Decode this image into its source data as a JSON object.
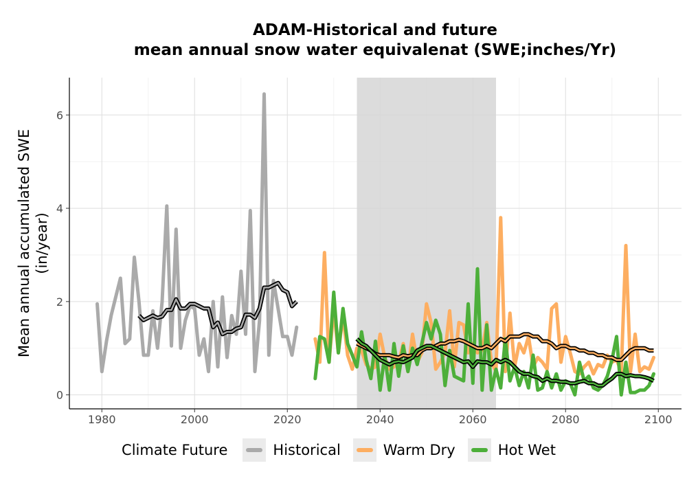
{
  "chart_data": {
    "type": "line",
    "title_line1": "ADAM-Historical and future",
    "title_line2": "mean annual snow water equivalenat (SWE;inches/Yr)",
    "xlabel": "",
    "ylabel_line1": "Mean annual accumulated SWE",
    "ylabel_line2": "(in/year)",
    "xlim": [
      1973,
      2105
    ],
    "ylim": [
      -0.3,
      6.8
    ],
    "x_ticks": [
      1980,
      2000,
      2020,
      2040,
      2060,
      2080,
      2100
    ],
    "y_ticks": [
      0,
      2,
      4,
      6
    ],
    "grid": true,
    "shaded_period": [
      2035,
      2065
    ],
    "legend_title": "Climate Future",
    "legend_position": "bottom",
    "series": [
      {
        "name": "Historical",
        "color": "#aaaaaa",
        "x": [
          1979,
          1980,
          1981,
          1982,
          1983,
          1984,
          1985,
          1986,
          1987,
          1988,
          1989,
          1990,
          1991,
          1992,
          1993,
          1994,
          1995,
          1996,
          1997,
          1998,
          1999,
          2000,
          2001,
          2002,
          2003,
          2004,
          2005,
          2006,
          2007,
          2008,
          2009,
          2010,
          2011,
          2012,
          2013,
          2014,
          2015,
          2016,
          2017,
          2018,
          2019,
          2020,
          2021,
          2022
        ],
        "values": [
          1.95,
          0.5,
          1.15,
          1.7,
          2.1,
          2.5,
          1.1,
          1.2,
          2.95,
          2.0,
          0.85,
          0.85,
          1.8,
          1.0,
          2.0,
          4.05,
          1.05,
          3.55,
          1.0,
          1.6,
          1.9,
          1.85,
          0.85,
          1.2,
          0.5,
          2.0,
          0.6,
          2.1,
          0.8,
          1.7,
          1.3,
          2.65,
          1.3,
          3.95,
          0.5,
          1.6,
          6.45,
          0.85,
          2.45,
          1.85,
          1.25,
          1.25,
          0.85,
          1.45
        ],
        "smooth_x": [
          1988,
          1989,
          1990,
          1991,
          1992,
          1993,
          1994,
          1995,
          1996,
          1997,
          1998,
          1999,
          2000,
          2001,
          2002,
          2003,
          2004,
          2005,
          2006,
          2007,
          2008,
          2009,
          2010,
          2011,
          2012,
          2013,
          2014,
          2015,
          2016,
          2017,
          2018,
          2019,
          2020,
          2021,
          2022
        ],
        "smooth_values": [
          1.7,
          1.6,
          1.65,
          1.7,
          1.65,
          1.68,
          1.82,
          1.82,
          2.05,
          1.85,
          1.85,
          1.95,
          1.95,
          1.9,
          1.85,
          1.85,
          1.45,
          1.55,
          1.3,
          1.35,
          1.35,
          1.42,
          1.45,
          1.72,
          1.72,
          1.65,
          1.85,
          2.3,
          2.3,
          2.35,
          2.4,
          2.25,
          2.2,
          1.9,
          2.0
        ]
      },
      {
        "name": "Warm Dry",
        "color": "#fdae61",
        "x": [
          2026,
          2027,
          2028,
          2029,
          2030,
          2031,
          2032,
          2033,
          2034,
          2035,
          2036,
          2037,
          2038,
          2039,
          2040,
          2041,
          2042,
          2043,
          2044,
          2045,
          2046,
          2047,
          2048,
          2049,
          2050,
          2051,
          2052,
          2053,
          2054,
          2055,
          2056,
          2057,
          2058,
          2059,
          2060,
          2061,
          2062,
          2063,
          2064,
          2065,
          2066,
          2067,
          2068,
          2069,
          2070,
          2071,
          2072,
          2073,
          2074,
          2075,
          2076,
          2077,
          2078,
          2079,
          2080,
          2081,
          2082,
          2083,
          2084,
          2085,
          2086,
          2087,
          2088,
          2089,
          2090,
          2091,
          2092,
          2093,
          2094,
          2095,
          2096,
          2097,
          2098,
          2099
        ],
        "values": [
          1.2,
          0.7,
          3.05,
          0.7,
          1.85,
          0.9,
          1.7,
          0.85,
          0.55,
          1.0,
          0.95,
          0.65,
          0.55,
          0.6,
          1.3,
          0.8,
          0.55,
          0.6,
          0.7,
          1.1,
          0.5,
          1.3,
          0.7,
          0.9,
          1.95,
          1.55,
          0.55,
          0.7,
          0.9,
          1.8,
          0.6,
          1.55,
          1.5,
          0.9,
          1.1,
          0.9,
          0.95,
          1.55,
          0.7,
          0.5,
          3.8,
          0.5,
          1.75,
          0.6,
          1.1,
          0.9,
          1.25,
          0.6,
          0.8,
          0.7,
          0.55,
          1.85,
          1.95,
          0.7,
          1.25,
          0.9,
          0.5,
          0.45,
          0.6,
          0.7,
          0.45,
          0.65,
          0.6,
          0.85,
          0.7,
          0.75,
          0.5,
          3.2,
          0.5,
          1.3,
          0.5,
          0.6,
          0.55,
          0.8
        ],
        "smooth_x": [
          2035,
          2036,
          2037,
          2038,
          2039,
          2040,
          2041,
          2042,
          2043,
          2044,
          2045,
          2046,
          2047,
          2048,
          2049,
          2050,
          2051,
          2052,
          2053,
          2054,
          2055,
          2056,
          2057,
          2058,
          2059,
          2060,
          2061,
          2062,
          2063,
          2064,
          2065,
          2066,
          2067,
          2068,
          2069,
          2070,
          2071,
          2072,
          2073,
          2074,
          2075,
          2076,
          2077,
          2078,
          2079,
          2080,
          2081,
          2082,
          2083,
          2084,
          2085,
          2086,
          2087,
          2088,
          2089,
          2090,
          2091,
          2092,
          2093,
          2094,
          2095,
          2096,
          2097,
          2098,
          2099
        ],
        "smooth_values": [
          1.1,
          1.05,
          1.0,
          0.95,
          0.88,
          0.85,
          0.85,
          0.85,
          0.82,
          0.8,
          0.85,
          0.83,
          0.85,
          0.85,
          0.95,
          1.0,
          1.0,
          1.05,
          1.1,
          1.1,
          1.15,
          1.15,
          1.18,
          1.15,
          1.1,
          1.05,
          1.0,
          1.0,
          1.05,
          1.0,
          1.1,
          1.2,
          1.15,
          1.25,
          1.25,
          1.25,
          1.3,
          1.3,
          1.25,
          1.25,
          1.15,
          1.15,
          1.1,
          1.0,
          1.05,
          1.05,
          1.0,
          1.0,
          0.95,
          0.95,
          0.9,
          0.9,
          0.85,
          0.85,
          0.8,
          0.8,
          0.75,
          0.75,
          0.85,
          0.95,
          1.0,
          1.0,
          1.0,
          0.95,
          0.95
        ]
      },
      {
        "name": "Hot Wet",
        "color": "#4daf3a",
        "x": [
          2026,
          2027,
          2028,
          2029,
          2030,
          2031,
          2032,
          2033,
          2034,
          2035,
          2036,
          2037,
          2038,
          2039,
          2040,
          2041,
          2042,
          2043,
          2044,
          2045,
          2046,
          2047,
          2048,
          2049,
          2050,
          2051,
          2052,
          2053,
          2054,
          2055,
          2056,
          2057,
          2058,
          2059,
          2060,
          2061,
          2062,
          2063,
          2064,
          2065,
          2066,
          2067,
          2068,
          2069,
          2070,
          2071,
          2072,
          2073,
          2074,
          2075,
          2076,
          2077,
          2078,
          2079,
          2080,
          2081,
          2082,
          2083,
          2084,
          2085,
          2086,
          2087,
          2088,
          2089,
          2090,
          2091,
          2092,
          2093,
          2094,
          2095,
          2096,
          2097,
          2098,
          2099
        ],
        "values": [
          0.35,
          1.25,
          1.2,
          0.7,
          2.2,
          0.9,
          1.85,
          1.1,
          0.85,
          0.6,
          1.35,
          0.75,
          0.35,
          1.15,
          0.1,
          0.85,
          0.1,
          1.1,
          0.4,
          1.05,
          0.5,
          1.0,
          0.65,
          1.1,
          1.55,
          1.2,
          1.6,
          1.3,
          0.2,
          0.95,
          0.4,
          0.35,
          0.3,
          1.95,
          0.25,
          2.7,
          0.1,
          1.5,
          0.1,
          0.55,
          0.15,
          1.2,
          0.3,
          0.6,
          0.2,
          0.5,
          0.15,
          0.85,
          0.1,
          0.15,
          0.5,
          0.15,
          0.45,
          0.1,
          0.3,
          0.25,
          0.0,
          0.7,
          0.3,
          0.4,
          0.15,
          0.1,
          0.2,
          0.4,
          0.75,
          1.25,
          0.0,
          0.7,
          0.05,
          0.05,
          0.1,
          0.1,
          0.2,
          0.45
        ],
        "smooth_x": [
          2035,
          2036,
          2037,
          2038,
          2039,
          2040,
          2041,
          2042,
          2043,
          2044,
          2045,
          2046,
          2047,
          2048,
          2049,
          2050,
          2051,
          2052,
          2053,
          2054,
          2055,
          2056,
          2057,
          2058,
          2059,
          2060,
          2061,
          2062,
          2063,
          2064,
          2065,
          2066,
          2067,
          2068,
          2069,
          2070,
          2071,
          2072,
          2073,
          2074,
          2075,
          2076,
          2077,
          2078,
          2079,
          2080,
          2081,
          2082,
          2083,
          2084,
          2085,
          2086,
          2087,
          2088,
          2089,
          2090,
          2091,
          2092,
          2093,
          2094,
          2095,
          2096,
          2097,
          2098,
          2099
        ],
        "smooth_values": [
          1.2,
          1.1,
          1.05,
          0.95,
          0.85,
          0.75,
          0.7,
          0.65,
          0.7,
          0.72,
          0.7,
          0.75,
          0.8,
          0.95,
          1.0,
          1.05,
          1.05,
          1.0,
          0.95,
          0.9,
          0.85,
          0.8,
          0.75,
          0.7,
          0.72,
          0.6,
          0.72,
          0.7,
          0.7,
          0.65,
          0.75,
          0.7,
          0.75,
          0.7,
          0.6,
          0.5,
          0.45,
          0.45,
          0.4,
          0.38,
          0.3,
          0.35,
          0.3,
          0.3,
          0.28,
          0.28,
          0.25,
          0.25,
          0.28,
          0.3,
          0.25,
          0.25,
          0.2,
          0.2,
          0.28,
          0.35,
          0.45,
          0.45,
          0.4,
          0.42,
          0.4,
          0.4,
          0.38,
          0.35,
          0.3
        ]
      }
    ]
  }
}
